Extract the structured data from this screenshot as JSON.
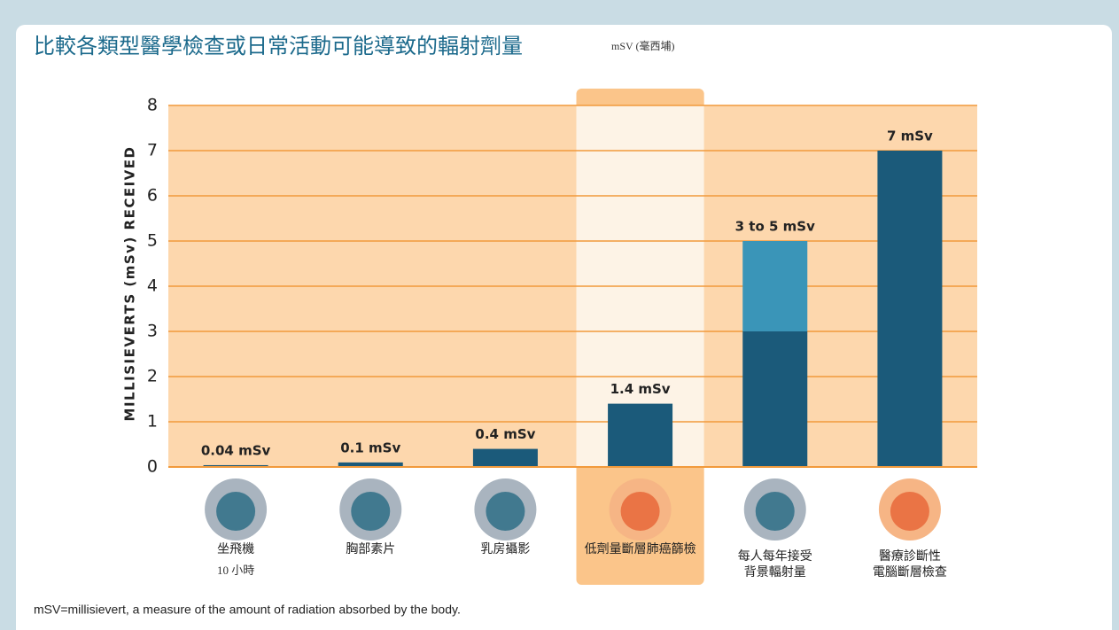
{
  "chart_data": {
    "type": "bar",
    "title": "比較各類型醫學檢查或日常活動可能導致的輻射劑量",
    "subtitle": "mSV (毫西埔)",
    "y_label": "MILLISIEVERTS (mSv) RECEIVED",
    "categories": [
      [
        "坐飛機"
      ],
      [
        "胸部素片"
      ],
      [
        "乳房攝影"
      ],
      [
        "低劑量斷層肺癌篩檢"
      ],
      [
        "每人每年接受",
        "背景輻射量"
      ],
      [
        "醫療診斷性",
        "電腦斷層檢查"
      ]
    ],
    "sublabels": [
      "10 小時",
      null,
      null,
      null,
      null,
      null
    ],
    "values": [
      0.04,
      0.1,
      0.4,
      1.4,
      3,
      7
    ],
    "upper": [
      null,
      null,
      null,
      null,
      5,
      null
    ],
    "value_labels": [
      "0.04 mSv",
      "0.1 mSv",
      "0.4 mSv",
      "1.4 mSv",
      "3 to 5 mSv",
      "7 mSv"
    ],
    "color": "#1b5a7a",
    "upper_color": "#3a95b8",
    "highlight_index": 3,
    "ylim": [
      0,
      8
    ],
    "yticks": [
      0,
      1,
      2,
      3,
      4,
      5,
      6,
      7,
      8
    ],
    "grid": true,
    "footnote": "mSV=millisievert, a measure of the amount of radiation absorbed by the body."
  }
}
